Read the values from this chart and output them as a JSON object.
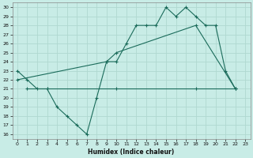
{
  "xlabel": "Humidex (Indice chaleur)",
  "bg_color": "#c8ece6",
  "grid_color": "#b0d8d0",
  "line_color": "#1a6b5a",
  "xlim": [
    -0.5,
    23.5
  ],
  "ylim": [
    15.5,
    30.5
  ],
  "xticks": [
    0,
    1,
    2,
    3,
    4,
    5,
    6,
    7,
    8,
    9,
    10,
    11,
    12,
    13,
    14,
    15,
    16,
    17,
    18,
    19,
    20,
    21,
    22,
    23
  ],
  "yticks": [
    16,
    17,
    18,
    19,
    20,
    21,
    22,
    23,
    24,
    25,
    26,
    27,
    28,
    29,
    30
  ],
  "series1_x": [
    0,
    1,
    2,
    3,
    4,
    5,
    6,
    7,
    8,
    9,
    10,
    11,
    12,
    13,
    14,
    15,
    16,
    17,
    18,
    19,
    20,
    21,
    22
  ],
  "series1_y": [
    23,
    22,
    21,
    21,
    19,
    18,
    17,
    16,
    20,
    24,
    24,
    26,
    28,
    28,
    28,
    30,
    29,
    30,
    29,
    28,
    28,
    23,
    21
  ],
  "series2_x": [
    1,
    3,
    10,
    18,
    22
  ],
  "series2_y": [
    21,
    21,
    21,
    21,
    21
  ],
  "series3_x": [
    0,
    9,
    10,
    18,
    22
  ],
  "series3_y": [
    22,
    24,
    25,
    28,
    21
  ]
}
